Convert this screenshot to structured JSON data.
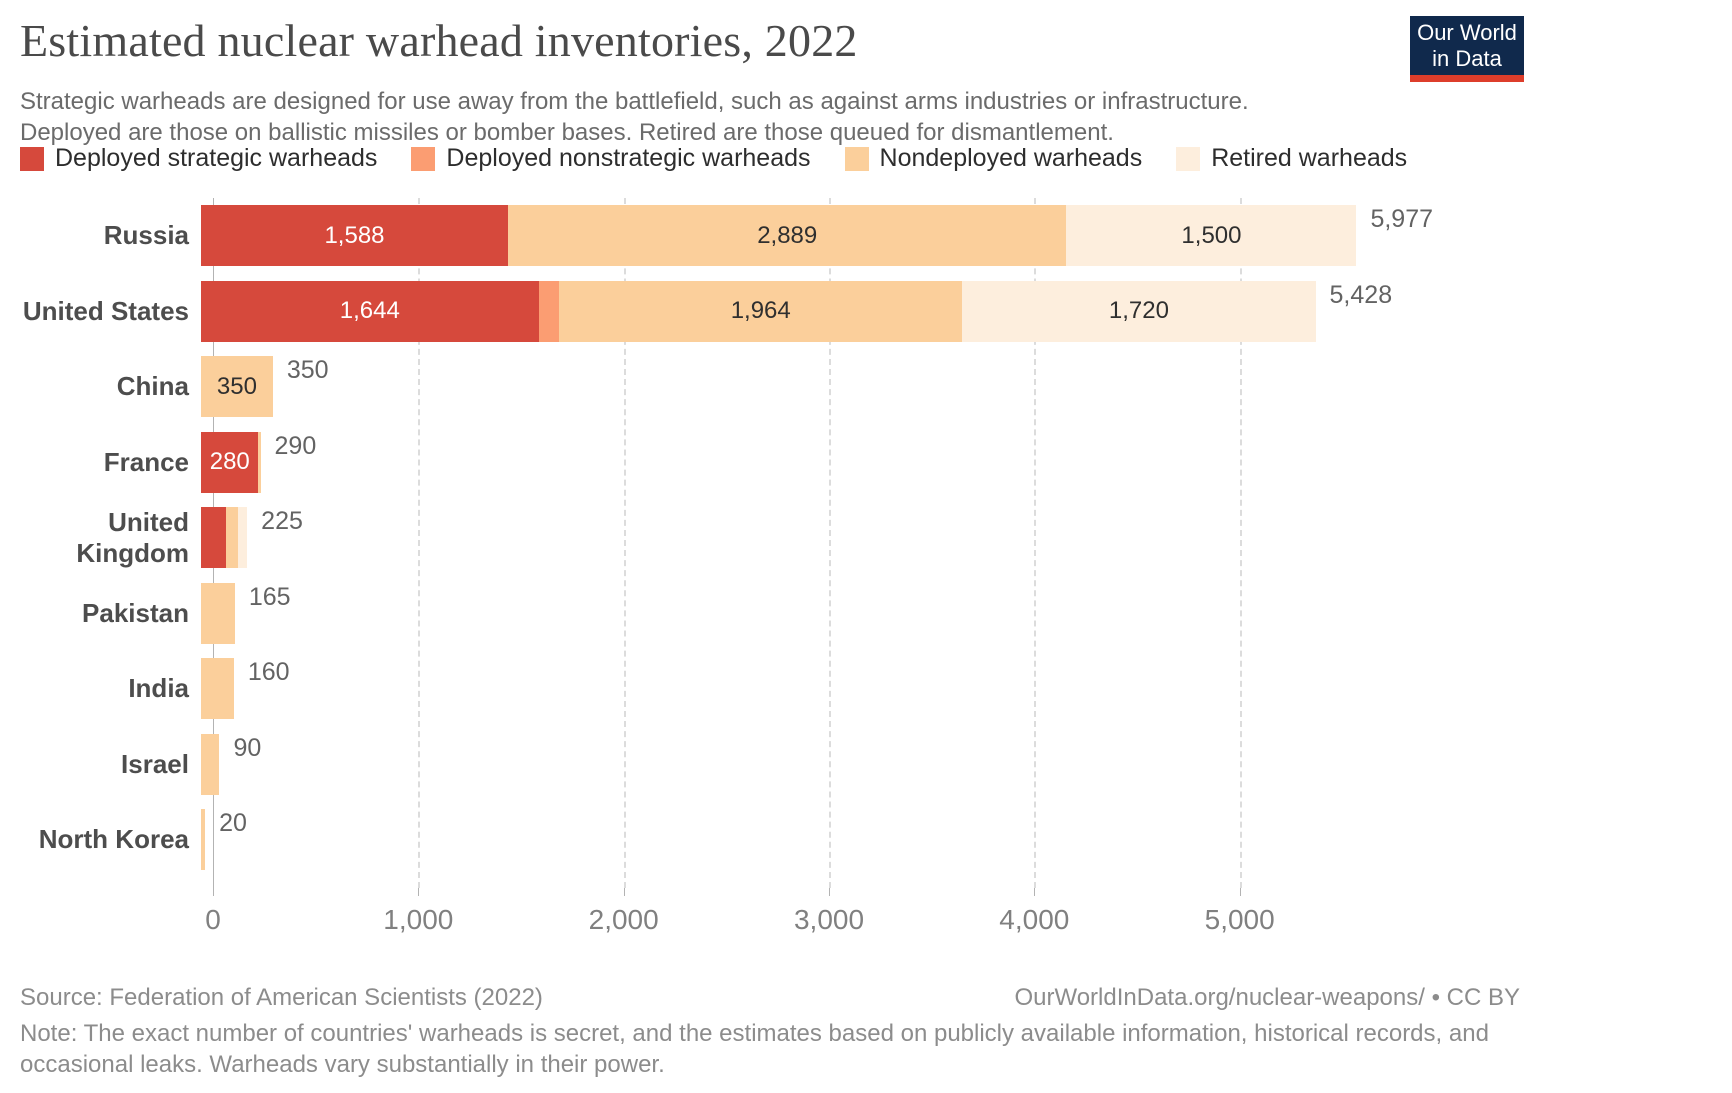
{
  "header": {
    "title": "Estimated nuclear warhead inventories, 2022",
    "subtitle1": "Strategic warheads are designed for use away from the battlefield, such as against arms industries or infrastructure.",
    "subtitle2": "Deployed are those on ballistic missiles or bomber bases. Retired are those queued for dismantlement.",
    "logo_line1": "Our World",
    "logo_line2": "in Data",
    "logo_bg_color": "#10294c",
    "logo_accent_color": "#dd3d2b"
  },
  "legend": [
    {
      "label": "Deployed strategic warheads",
      "key": "deployed_strategic"
    },
    {
      "label": "Deployed nonstrategic warheads",
      "key": "deployed_nonstrategic"
    },
    {
      "label": "Nondeployed warheads",
      "key": "nondeployed"
    },
    {
      "label": "Retired warheads",
      "key": "retired"
    }
  ],
  "palette": {
    "deployed_strategic": "#d6493c",
    "deployed_nonstrategic": "#fb9d72",
    "nondeployed": "#fbcf9b",
    "retired": "#fdeedd"
  },
  "chart_data": {
    "type": "bar",
    "orientation": "horizontal",
    "stacked": true,
    "title": "Estimated nuclear warhead inventories, 2022",
    "xlim": [
      0,
      6000
    ],
    "grid": true,
    "x_ticks": [
      {
        "value": 0,
        "label": "0"
      },
      {
        "value": 1000,
        "label": "1,000"
      },
      {
        "value": 2000,
        "label": "2,000"
      },
      {
        "value": 3000,
        "label": "3,000"
      },
      {
        "value": 4000,
        "label": "4,000"
      },
      {
        "value": 5000,
        "label": "5,000"
      }
    ],
    "categories": [
      "Russia",
      "United States",
      "China",
      "France",
      "United Kingdom",
      "Pakistan",
      "India",
      "Israel",
      "North Korea"
    ],
    "series": [
      {
        "name": "Deployed strategic warheads",
        "key": "deployed_strategic",
        "values": [
          1588,
          1644,
          0,
          280,
          120,
          0,
          0,
          0,
          0
        ]
      },
      {
        "name": "Deployed nonstrategic warheads",
        "key": "deployed_nonstrategic",
        "values": [
          0,
          100,
          0,
          0,
          0,
          0,
          0,
          0,
          0
        ]
      },
      {
        "name": "Nondeployed warheads",
        "key": "nondeployed",
        "values": [
          2889,
          1964,
          350,
          10,
          60,
          165,
          160,
          90,
          20
        ]
      },
      {
        "name": "Retired warheads",
        "key": "retired",
        "values": [
          1500,
          1720,
          0,
          0,
          45,
          0,
          0,
          0,
          0
        ]
      }
    ],
    "rows": [
      {
        "country": "Russia",
        "total_label": "5,977",
        "segments": [
          {
            "key": "deployed_strategic",
            "value": 1588,
            "label": "1,588",
            "label_style": "light"
          },
          {
            "key": "nondeployed",
            "value": 2889,
            "label": "2,889",
            "label_style": "dark"
          },
          {
            "key": "retired",
            "value": 1500,
            "label": "1,500",
            "label_style": "dark"
          }
        ]
      },
      {
        "country": "United States",
        "total_label": "5,428",
        "segments": [
          {
            "key": "deployed_strategic",
            "value": 1644,
            "label": "1,644",
            "label_style": "light"
          },
          {
            "key": "deployed_nonstrategic",
            "value": 100,
            "label": "",
            "label_style": "dark"
          },
          {
            "key": "nondeployed",
            "value": 1964,
            "label": "1,964",
            "label_style": "dark"
          },
          {
            "key": "retired",
            "value": 1720,
            "label": "1,720",
            "label_style": "dark"
          }
        ]
      },
      {
        "country": "China",
        "total_label": "350",
        "segments": [
          {
            "key": "nondeployed",
            "value": 350,
            "label": "350",
            "label_style": "dark"
          }
        ]
      },
      {
        "country": "France",
        "total_label": "290",
        "segments": [
          {
            "key": "deployed_strategic",
            "value": 280,
            "label": "280",
            "label_style": "light"
          },
          {
            "key": "nondeployed",
            "value": 10,
            "label": "",
            "label_style": "dark"
          }
        ]
      },
      {
        "country": "United Kingdom",
        "total_label": "225",
        "segments": [
          {
            "key": "deployed_strategic",
            "value": 120,
            "label": "",
            "label_style": "light"
          },
          {
            "key": "nondeployed",
            "value": 60,
            "label": "",
            "label_style": "dark"
          },
          {
            "key": "retired",
            "value": 45,
            "label": "",
            "label_style": "dark"
          }
        ]
      },
      {
        "country": "Pakistan",
        "total_label": "165",
        "segments": [
          {
            "key": "nondeployed",
            "value": 165,
            "label": "",
            "label_style": "dark"
          }
        ]
      },
      {
        "country": "India",
        "total_label": "160",
        "segments": [
          {
            "key": "nondeployed",
            "value": 160,
            "label": "",
            "label_style": "dark"
          }
        ]
      },
      {
        "country": "Israel",
        "total_label": "90",
        "segments": [
          {
            "key": "nondeployed",
            "value": 90,
            "label": "",
            "label_style": "dark"
          }
        ]
      },
      {
        "country": "North Korea",
        "total_label": "20",
        "segments": [
          {
            "key": "nondeployed",
            "value": 20,
            "label": "",
            "label_style": "dark"
          }
        ]
      }
    ]
  },
  "footer": {
    "source": "Source: Federation of American Scientists (2022)",
    "link": "OurWorldInData.org/nuclear-weapons/ • CC BY",
    "note1": "Note: The exact number of countries' warheads is secret, and the estimates based on publicly available information, historical records, and",
    "note2": "occasional leaks. Warheads vary substantially in their power."
  }
}
